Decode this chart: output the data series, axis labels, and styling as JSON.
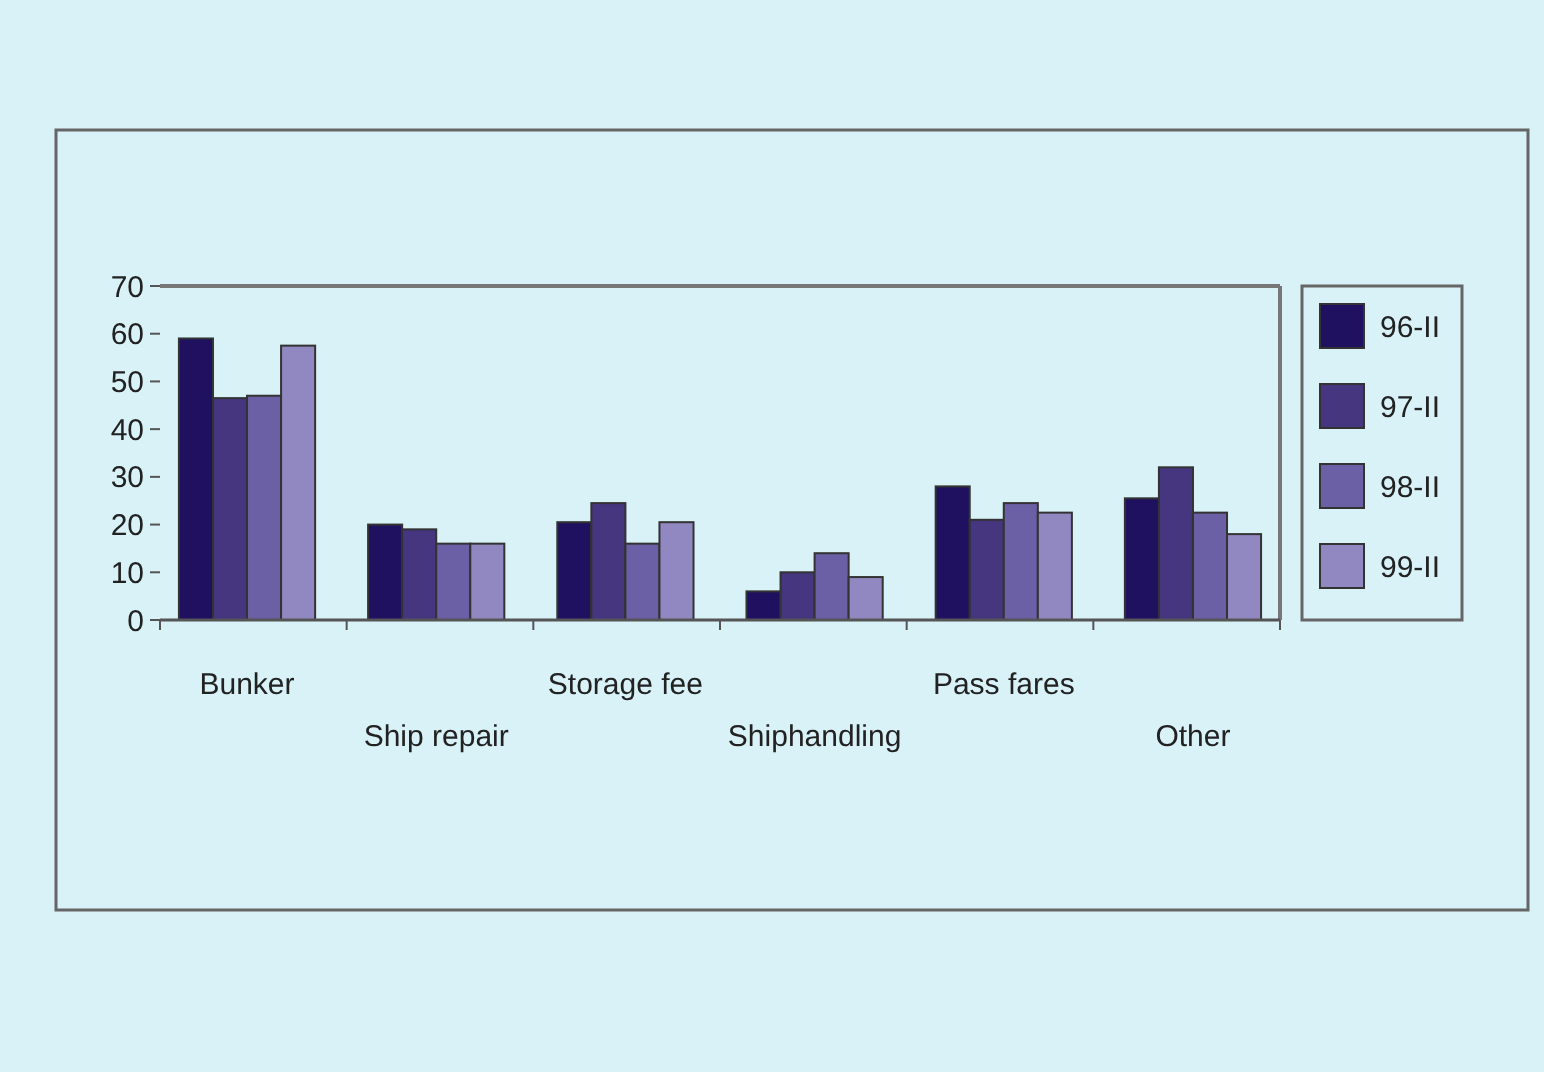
{
  "chart_data": {
    "type": "bar",
    "categories": [
      "Bunker",
      "Ship repair",
      "Storage fee",
      "Shiphandling",
      "Pass fares",
      "Other"
    ],
    "series": [
      {
        "name": "96-II",
        "color": "#1f1160",
        "values": [
          59,
          20,
          20.5,
          6,
          28,
          25.5
        ]
      },
      {
        "name": "97-II",
        "color": "#45367f",
        "values": [
          46.5,
          19,
          24.5,
          10,
          21,
          32
        ]
      },
      {
        "name": "98-II",
        "color": "#6b5fa6",
        "values": [
          47,
          16,
          16,
          14,
          24.5,
          22.5
        ]
      },
      {
        "name": "99-II",
        "color": "#9188c2",
        "values": [
          57.5,
          16,
          20.5,
          9,
          22.5,
          18
        ]
      }
    ],
    "ylim": [
      0,
      70
    ],
    "yticks": [
      0,
      10,
      20,
      30,
      40,
      50,
      60,
      70
    ],
    "grid": false,
    "legend": "right"
  }
}
